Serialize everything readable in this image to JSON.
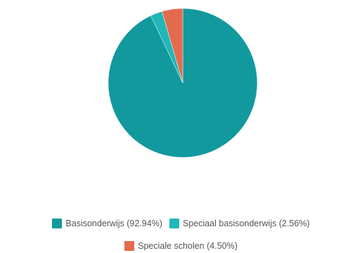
{
  "chart_data": {
    "type": "pie",
    "slices": [
      {
        "label": "Basisonderwijs",
        "value": 92.94,
        "legend": "Basisonderwijs (92.94%)",
        "color": "#11999e"
      },
      {
        "label": "Speciaal basisonderwijs",
        "value": 2.56,
        "legend": "Speciaal basisonderwijs (2.56%)",
        "color": "#21b6b8"
      },
      {
        "label": "Speciale scholen",
        "value": 4.5,
        "legend": "Speciale scholen (4.50%)",
        "color": "#e56b4e"
      }
    ],
    "legend_position": "bottom"
  }
}
